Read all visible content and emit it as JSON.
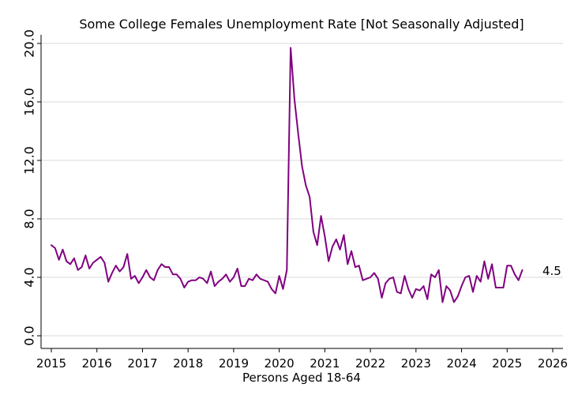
{
  "chart_data": {
    "type": "line",
    "title": "Some College Females Unemployment Rate [Not Seasonally Adjusted]",
    "xlabel": "Persons Aged 18-64",
    "ylabel": "",
    "xlim": [
      2015,
      2026
    ],
    "ylim": [
      0,
      20
    ],
    "x_ticks": [
      "2015",
      "2016",
      "2017",
      "2018",
      "2019",
      "2020",
      "2021",
      "2022",
      "2023",
      "2024",
      "2025",
      "2026"
    ],
    "y_ticks": [
      "0.0",
      "4.0",
      "8.0",
      "12.0",
      "16.0",
      "20.0"
    ],
    "grid": true,
    "legend": "none",
    "end_label": "4.5",
    "colors": {
      "line": "#800080",
      "grid": "#d9d9d9",
      "axis": "#000000"
    },
    "series": [
      {
        "x": [
          2015.0,
          2015.083,
          2015.167,
          2015.25,
          2015.333,
          2015.417,
          2015.5,
          2015.583,
          2015.667,
          2015.75,
          2015.833,
          2015.917,
          2016.0,
          2016.083,
          2016.167,
          2016.25,
          2016.333,
          2016.417,
          2016.5,
          2016.583,
          2016.667,
          2016.75,
          2016.833,
          2016.917,
          2017.0,
          2017.083,
          2017.167,
          2017.25,
          2017.333,
          2017.417,
          2017.5,
          2017.583,
          2017.667,
          2017.75,
          2017.833,
          2017.917,
          2018.0,
          2018.083,
          2018.167,
          2018.25,
          2018.333,
          2018.417,
          2018.5,
          2018.583,
          2018.667,
          2018.75,
          2018.833,
          2018.917,
          2019.0,
          2019.083,
          2019.167,
          2019.25,
          2019.333,
          2019.417,
          2019.5,
          2019.583,
          2019.667,
          2019.75,
          2019.833,
          2019.917,
          2020.0,
          2020.083,
          2020.167,
          2020.25,
          2020.333,
          2020.417,
          2020.5,
          2020.583,
          2020.667,
          2020.75,
          2020.833,
          2020.917,
          2021.0,
          2021.083,
          2021.167,
          2021.25,
          2021.333,
          2021.417,
          2021.5,
          2021.583,
          2021.667,
          2021.75,
          2021.833,
          2021.917,
          2022.0,
          2022.083,
          2022.167,
          2022.25,
          2022.333,
          2022.417,
          2022.5,
          2022.583,
          2022.667,
          2022.75,
          2022.833,
          2022.917,
          2023.0,
          2023.083,
          2023.167,
          2023.25,
          2023.333,
          2023.417,
          2023.5,
          2023.583,
          2023.667,
          2023.75,
          2023.833,
          2023.917,
          2024.0,
          2024.083,
          2024.167,
          2024.25,
          2024.333,
          2024.417,
          2024.5,
          2024.583,
          2024.667,
          2024.75,
          2024.833,
          2024.917,
          2025.0,
          2025.083,
          2025.167,
          2025.25,
          2025.333
        ],
        "y": [
          6.2,
          6.0,
          5.2,
          5.9,
          5.1,
          4.9,
          5.3,
          4.5,
          4.7,
          5.5,
          4.6,
          5.0,
          5.2,
          5.4,
          5.0,
          3.7,
          4.3,
          4.8,
          4.4,
          4.7,
          5.6,
          3.9,
          4.1,
          3.6,
          4.0,
          4.5,
          4.0,
          3.8,
          4.5,
          4.9,
          4.7,
          4.7,
          4.2,
          4.2,
          3.9,
          3.3,
          3.7,
          3.8,
          3.8,
          4.0,
          3.9,
          3.6,
          4.4,
          3.4,
          3.7,
          3.9,
          4.2,
          3.7,
          4.0,
          4.6,
          3.4,
          3.4,
          3.9,
          3.8,
          4.2,
          3.9,
          3.8,
          3.7,
          3.2,
          2.9,
          4.1,
          3.2,
          4.5,
          19.7,
          16.2,
          13.8,
          11.6,
          10.3,
          9.5,
          7.1,
          6.2,
          8.2,
          6.8,
          5.1,
          6.1,
          6.6,
          5.9,
          6.9,
          4.9,
          5.8,
          4.7,
          4.8,
          3.8,
          3.9,
          4.0,
          4.3,
          3.9,
          2.6,
          3.6,
          3.9,
          4.0,
          3.0,
          2.9,
          4.1,
          3.2,
          2.6,
          3.2,
          3.1,
          3.4,
          2.5,
          4.2,
          4.0,
          4.5,
          2.3,
          3.4,
          3.1,
          2.3,
          2.7,
          3.4,
          4.0,
          4.1,
          3.0,
          4.1,
          3.7,
          5.1,
          3.9,
          4.9,
          3.3,
          3.3,
          3.3,
          4.8,
          4.8,
          4.2,
          3.8,
          4.5
        ]
      }
    ]
  }
}
